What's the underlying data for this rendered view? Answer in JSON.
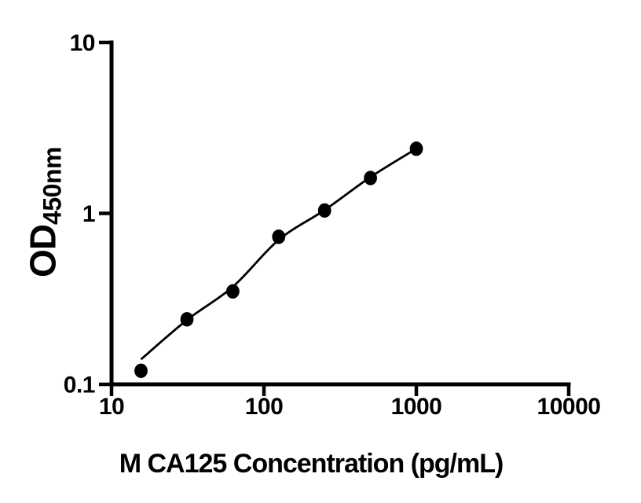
{
  "figure": {
    "background_color": "#ffffff",
    "ink_color": "#000000"
  },
  "chart_data": {
    "type": "scatter",
    "title": "",
    "xlabel": "M CA125 Concentration (pg/mL)",
    "ylabel_main": "OD",
    "ylabel_sub": "450nm",
    "x_scale": "log10",
    "y_scale": "log10",
    "xlim": [
      10,
      10000
    ],
    "ylim": [
      0.1,
      10
    ],
    "grid": false,
    "legend": "none",
    "x_ticks": [
      {
        "value": 10,
        "label": "10"
      },
      {
        "value": 100,
        "label": "100"
      },
      {
        "value": 1000,
        "label": "1000"
      },
      {
        "value": 10000,
        "label": "10000"
      }
    ],
    "y_ticks": [
      {
        "value": 0.1,
        "label": "0.1"
      },
      {
        "value": 1,
        "label": "1"
      },
      {
        "value": 10,
        "label": "10"
      }
    ],
    "points": [
      {
        "concentration_pg_ml": 15.6,
        "od450": 0.12
      },
      {
        "concentration_pg_ml": 31.25,
        "od450": 0.24
      },
      {
        "concentration_pg_ml": 62.5,
        "od450": 0.35
      },
      {
        "concentration_pg_ml": 125,
        "od450": 0.73
      },
      {
        "concentration_pg_ml": 250,
        "od450": 1.04
      },
      {
        "concentration_pg_ml": 500,
        "od450": 1.61
      },
      {
        "concentration_pg_ml": 1000,
        "od450": 2.39
      }
    ],
    "fit_curve": {
      "x": [
        15.6,
        31.25,
        62.5,
        125,
        250,
        500,
        1000
      ],
      "od450": [
        0.14,
        0.238,
        0.372,
        0.7,
        1.045,
        1.63,
        2.39
      ]
    },
    "marker": {
      "shape": "circle",
      "color": "#000000"
    }
  }
}
